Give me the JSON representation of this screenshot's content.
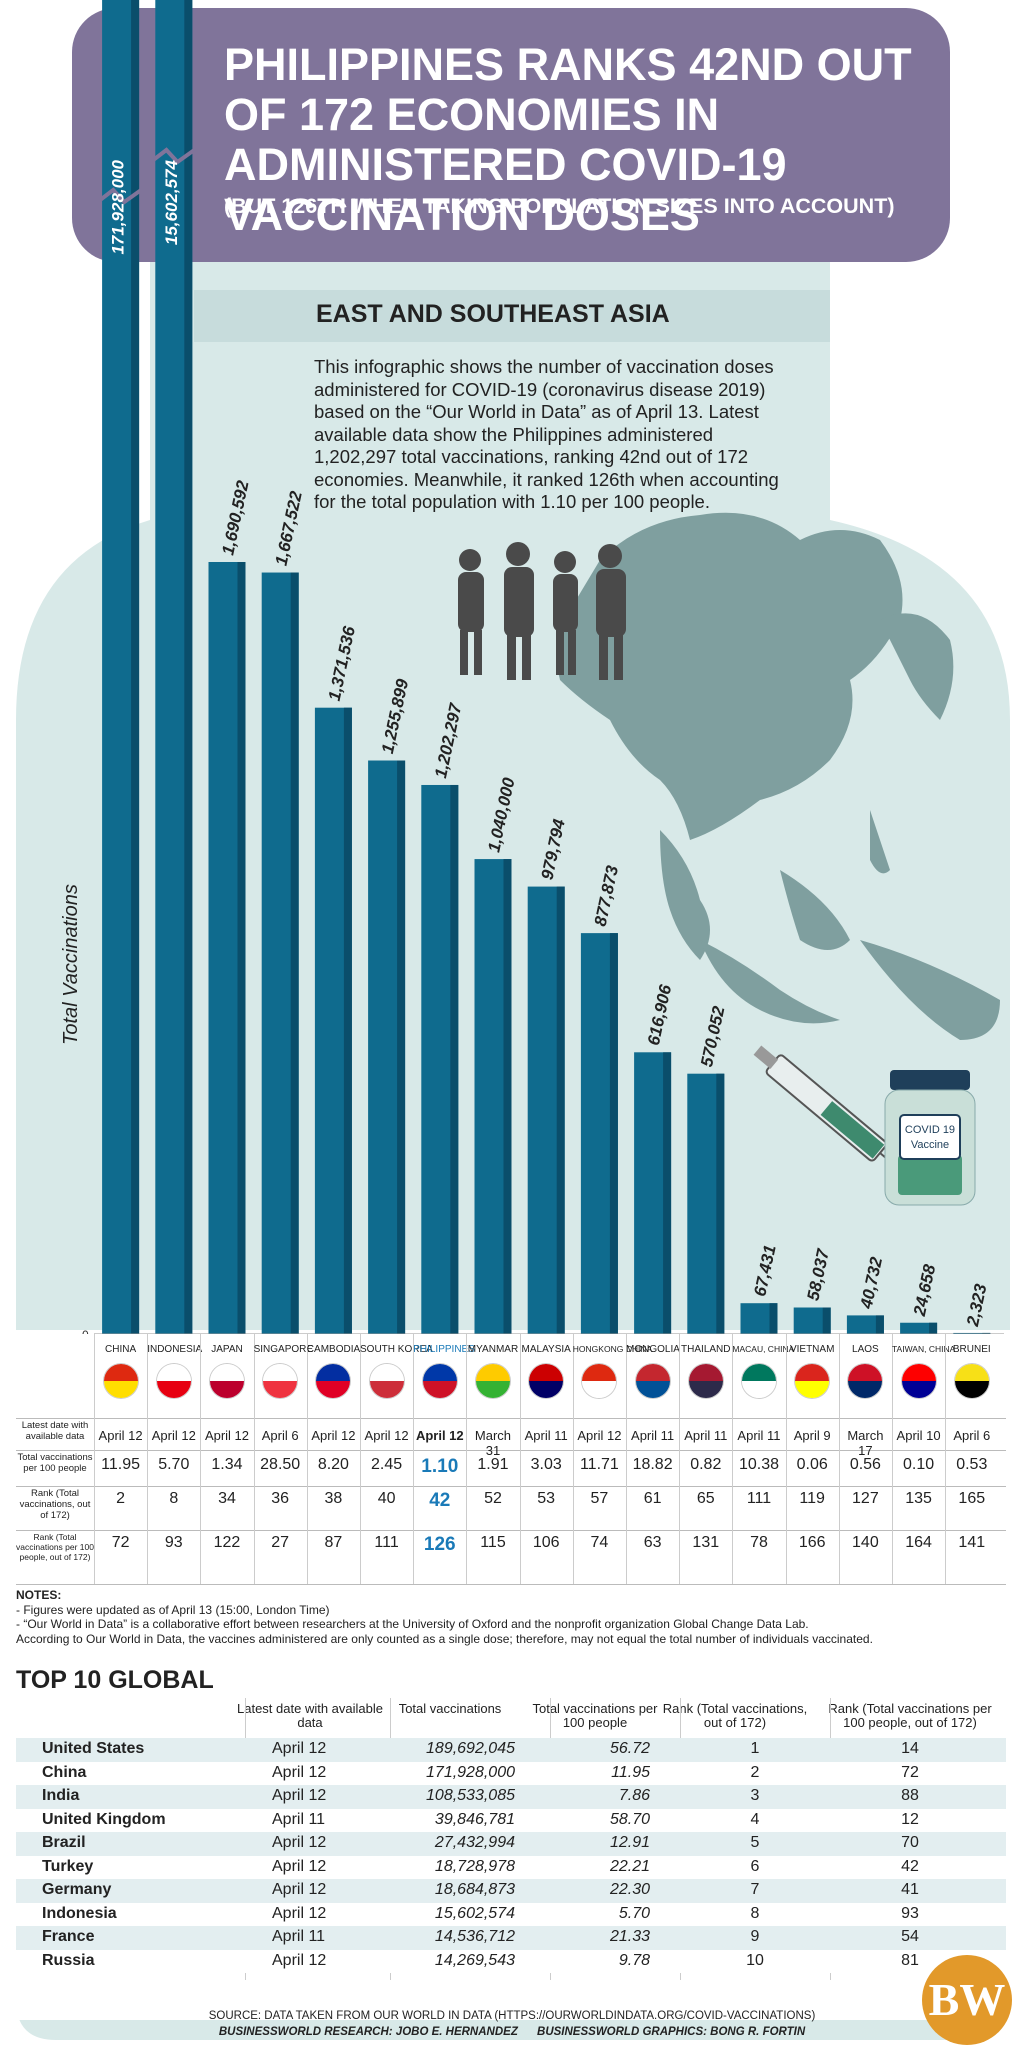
{
  "header": {
    "title": "PHILIPPINES RANKS 42ND OUT OF 172 ECONOMIES IN ADMINISTERED COVID-19 VACCINATION DOSES",
    "subtitle": "(BUT 126TH WHEN TAKING POPULATION SIZES INTO ACCOUNT)"
  },
  "region_title": "EAST AND SOUTHEAST ASIA",
  "intro": "This infographic shows the number of vaccination doses administered for COVID-19 (coronavirus disease 2019) based on the “Our World in Data” as of April 13. Latest available data show the Philippines administered 1,202,297 total vaccinations, ranking 42nd out of 172 economies. Meanwhile, it ranked 126th when accounting for the total population with 1.10 per 100 people.",
  "vaccine_label": "COVID 19 Vaccine",
  "chart_data": {
    "type": "bar",
    "ylabel": "Total Vaccinations",
    "zero_label": "0",
    "categories": [
      "CHINA",
      "INDONESIA",
      "JAPAN",
      "SINGAPORE",
      "CAMBODIA",
      "SOUTH KOREA",
      "PHILIPPINES",
      "MYANMAR",
      "MALAYSIA",
      "HONGKONG CHINA",
      "MONGOLIA",
      "THAILAND",
      "MACAU, CHINA",
      "VIETNAM",
      "LAOS",
      "TAIWAN, CHINA",
      "BRUNEI"
    ],
    "values": [
      171928000,
      15602574,
      1690592,
      1667522,
      1371536,
      1255899,
      1202297,
      1040000,
      979794,
      877873,
      616906,
      570052,
      67431,
      58037,
      40732,
      24658,
      2323
    ],
    "value_labels": [
      "171,928,000",
      "15,602,574",
      "1,690,592",
      "1,667,522",
      "1,371,536",
      "1,255,899",
      "1,202,297",
      "1,040,000",
      "979,794",
      "877,873",
      "616,906",
      "570,052",
      "67,431",
      "58,037",
      "40,732",
      "24,658",
      "2,323"
    ],
    "axis_break": true,
    "colors": {
      "bar": "#0f6b8e",
      "bar_side": "#0a4e6b"
    }
  },
  "table": {
    "row_labels": [
      "Latest date with available data",
      "Total vaccinations per 100 people",
      "Rank (Total vaccinations, out of 172)",
      "Rank (Total vaccinations per 100 people, out of 172)"
    ],
    "dates": [
      "April 12",
      "April 12",
      "April 12",
      "April 6",
      "April 12",
      "April 12",
      "April 12",
      "March 31",
      "April 11",
      "April 12",
      "April 11",
      "April 11",
      "April 11",
      "April 9",
      "March 17",
      "April 10",
      "April 6"
    ],
    "per100": [
      "11.95",
      "5.70",
      "1.34",
      "28.50",
      "8.20",
      "2.45",
      "1.10",
      "1.91",
      "3.03",
      "11.71",
      "18.82",
      "0.82",
      "10.38",
      "0.06",
      "0.56",
      "0.10",
      "0.53"
    ],
    "rank_total": [
      "2",
      "8",
      "34",
      "36",
      "38",
      "40",
      "42",
      "52",
      "53",
      "57",
      "61",
      "65",
      "111",
      "119",
      "127",
      "135",
      "165"
    ],
    "rank_per100": [
      "72",
      "93",
      "122",
      "27",
      "87",
      "111",
      "126",
      "115",
      "106",
      "74",
      "63",
      "131",
      "78",
      "166",
      "140",
      "164",
      "141"
    ],
    "highlight_index": 6
  },
  "notes": {
    "title": "NOTES:",
    "lines": [
      "- Figures were updated as of April 13 (15:00, London Time)",
      "- “Our World in Data” is a collaborative effort between researchers at the University of Oxford and the nonprofit organization Global Change Data Lab.",
      "According to Our World in Data, the vaccines administered are only counted as a single dose; therefore, may not equal the total number of individuals vaccinated."
    ]
  },
  "top10": {
    "title": "TOP 10 GLOBAL",
    "headers": [
      "Latest date with available data",
      "Total vaccinations",
      "Total vaccinations per 100 people",
      "Rank (Total vaccinations, out of 172)",
      "Rank (Total vaccinations per 100 people, out of 172)"
    ],
    "rows": [
      {
        "country": "United States",
        "date": "April 12",
        "total": "189,692,045",
        "per100": "56.72",
        "rank_total": "1",
        "rank_per100": "14"
      },
      {
        "country": "China",
        "date": "April 12",
        "total": "171,928,000",
        "per100": "11.95",
        "rank_total": "2",
        "rank_per100": "72"
      },
      {
        "country": "India",
        "date": "April 12",
        "total": "108,533,085",
        "per100": "7.86",
        "rank_total": "3",
        "rank_per100": "88"
      },
      {
        "country": "United Kingdom",
        "date": "April 11",
        "total": "39,846,781",
        "per100": "58.70",
        "rank_total": "4",
        "rank_per100": "12"
      },
      {
        "country": "Brazil",
        "date": "April 12",
        "total": "27,432,994",
        "per100": "12.91",
        "rank_total": "5",
        "rank_per100": "70"
      },
      {
        "country": "Turkey",
        "date": "April 12",
        "total": "18,728,978",
        "per100": "22.21",
        "rank_total": "6",
        "rank_per100": "42"
      },
      {
        "country": "Germany",
        "date": "April 12",
        "total": "18,684,873",
        "per100": "22.30",
        "rank_total": "7",
        "rank_per100": "41"
      },
      {
        "country": "Indonesia",
        "date": "April 12",
        "total": "15,602,574",
        "per100": "5.70",
        "rank_total": "8",
        "rank_per100": "93"
      },
      {
        "country": "France",
        "date": "April 11",
        "total": "14,536,712",
        "per100": "21.33",
        "rank_total": "9",
        "rank_per100": "54"
      },
      {
        "country": "Russia",
        "date": "April 12",
        "total": "14,269,543",
        "per100": "9.78",
        "rank_total": "10",
        "rank_per100": "81"
      }
    ]
  },
  "source": {
    "line1": "SOURCE: DATA TAKEN FROM OUR WORLD IN DATA (HTTPS://OURWORLDINDATA.ORG/COVID-VACCINATIONS)",
    "research": "BUSINESSWORLD RESEARCH: JOBO E. HERNANDEZ",
    "graphics": "BUSINESSWORLD GRAPHICS: BONG R. FORTIN"
  },
  "logo": "BW"
}
